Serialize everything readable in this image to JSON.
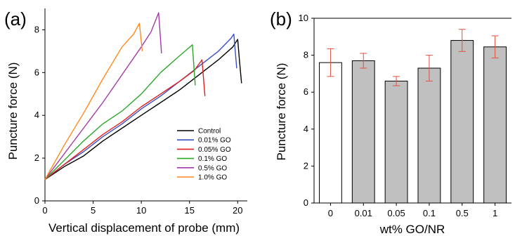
{
  "chart_data": [
    {
      "panel_label": "(a)",
      "type": "line",
      "xlabel": "Vertical displacement of probe (mm)",
      "ylabel": "Puncture force (N)",
      "xlim": [
        0,
        21
      ],
      "ylim": [
        0,
        9
      ],
      "xticks": [
        "0",
        "5",
        "10",
        "15",
        "20"
      ],
      "yticks": [
        "0",
        "2",
        "4",
        "6",
        "8"
      ],
      "legend_position": "bottom-right",
      "series": [
        {
          "name": "Control",
          "color": "#000000",
          "x": [
            0,
            2,
            4,
            6,
            8,
            10,
            12,
            14,
            16,
            18,
            19.5,
            20.0,
            20.2,
            20.4
          ],
          "y": [
            1.0,
            1.6,
            2.1,
            2.8,
            3.4,
            4.0,
            4.6,
            5.2,
            5.9,
            6.6,
            7.2,
            7.55,
            6.5,
            5.5
          ]
        },
        {
          "name": "0.01% GO",
          "color": "#3a4fc4",
          "x": [
            0,
            2,
            4,
            6,
            8,
            10,
            12,
            14,
            16,
            18,
            19.3,
            19.6,
            19.9
          ],
          "y": [
            1.0,
            1.7,
            2.3,
            3.0,
            3.6,
            4.3,
            4.9,
            5.6,
            6.3,
            7.0,
            7.6,
            7.8,
            6.2
          ]
        },
        {
          "name": "0.05% GO",
          "color": "#e02020",
          "x": [
            0,
            2,
            4,
            6,
            8,
            10,
            12,
            14,
            15.5,
            16.3,
            16.6
          ],
          "y": [
            1.0,
            1.7,
            2.4,
            3.1,
            3.7,
            4.4,
            5.0,
            5.6,
            6.1,
            6.6,
            4.9
          ]
        },
        {
          "name": "0.1% GO",
          "color": "#2aa82a",
          "x": [
            0,
            2,
            4,
            6,
            8,
            10,
            12,
            13.5,
            15.3,
            15.6
          ],
          "y": [
            1.0,
            1.9,
            2.8,
            3.6,
            4.2,
            5.0,
            6.0,
            6.6,
            7.3,
            5.4
          ]
        },
        {
          "name": "0.5% GO",
          "color": "#a23aa8",
          "x": [
            0,
            2,
            4,
            6,
            8,
            10,
            11.0,
            11.8,
            12.1
          ],
          "y": [
            1.0,
            2.2,
            3.4,
            4.6,
            5.9,
            7.2,
            7.9,
            8.8,
            6.9
          ]
        },
        {
          "name": "1.0% GO",
          "color": "#ff8a1c",
          "x": [
            0,
            2,
            4,
            6,
            8,
            9.2,
            9.8,
            10.1
          ],
          "y": [
            1.0,
            2.6,
            4.1,
            5.7,
            7.2,
            7.8,
            8.3,
            7.0
          ]
        }
      ]
    },
    {
      "panel_label": "(b)",
      "type": "bar",
      "xlabel": "wt% GO/NR",
      "ylabel": "Puncture force (N)",
      "ylim": [
        0,
        10
      ],
      "yticks": [
        "0",
        "2",
        "4",
        "6",
        "8",
        "10"
      ],
      "categories": [
        "0",
        "0.01",
        "0.05",
        "0.1",
        "0.5",
        "1"
      ],
      "values": [
        7.6,
        7.7,
        6.6,
        7.3,
        8.8,
        8.45
      ],
      "errors": [
        0.75,
        0.4,
        0.25,
        0.7,
        0.6,
        0.6
      ],
      "bar_colors": [
        "#ffffff",
        "#c0c0c0",
        "#c0c0c0",
        "#c0c0c0",
        "#c0c0c0",
        "#c0c0c0"
      ],
      "error_color": "#e05040"
    }
  ]
}
